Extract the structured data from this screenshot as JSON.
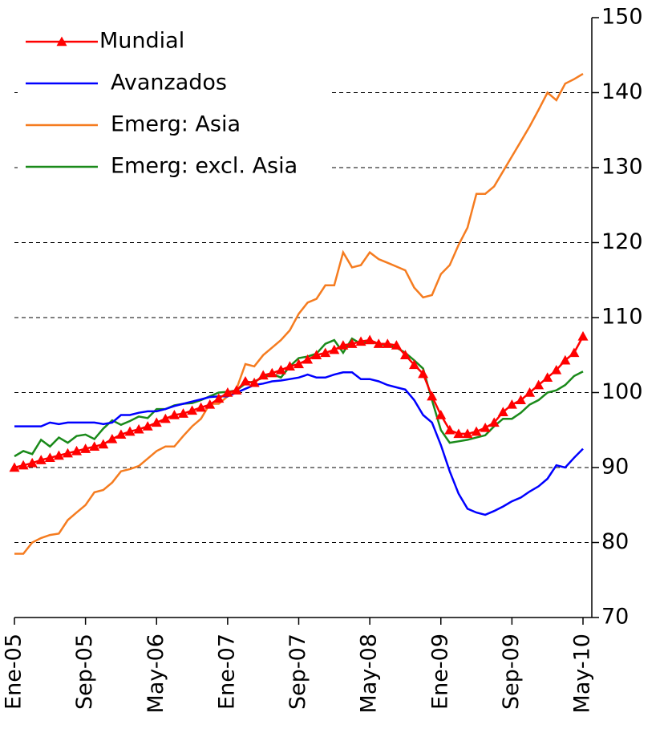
{
  "chart_data": {
    "type": "line",
    "categories": [
      "Ene-05",
      null,
      null,
      null,
      null,
      null,
      null,
      null,
      "Sep-05",
      null,
      null,
      null,
      null,
      null,
      null,
      null,
      "May-06",
      null,
      null,
      null,
      null,
      null,
      null,
      null,
      "Ene-07",
      null,
      null,
      null,
      null,
      null,
      null,
      null,
      "Sep-07",
      null,
      null,
      null,
      null,
      null,
      null,
      null,
      "May-08",
      null,
      null,
      null,
      null,
      null,
      null,
      null,
      "Ene-09",
      null,
      null,
      null,
      null,
      null,
      null,
      null,
      "Sep-09",
      null,
      null,
      null,
      null,
      null,
      null,
      null,
      "May-10"
    ],
    "series": [
      {
        "name": "Mundial",
        "color": "#ff0000",
        "marker": "triangle",
        "values": [
          90,
          90.3,
          90.6,
          91,
          91.3,
          91.6,
          91.9,
          92.2,
          92.5,
          92.8,
          93.1,
          93.8,
          94.4,
          94.8,
          95.1,
          95.5,
          96,
          96.5,
          97,
          97.2,
          97.6,
          98,
          98.4,
          99.2,
          100,
          100.3,
          101.5,
          101.3,
          102.3,
          102.6,
          103,
          103.5,
          103.8,
          104.4,
          105,
          105.3,
          105.7,
          106.3,
          106.5,
          106.8,
          107,
          106.5,
          106.5,
          106.3,
          105,
          103.7,
          102.5,
          99.5,
          97,
          95,
          94.5,
          94.5,
          94.8,
          95.3,
          96,
          97.4,
          98.4,
          99,
          100,
          101,
          102,
          103,
          104.3,
          105.3,
          107.5
        ]
      },
      {
        "name": "Avanzados",
        "color": "#0000ff",
        "values": [
          95.5,
          95.5,
          95.5,
          95.5,
          96,
          95.8,
          96,
          96,
          96,
          96,
          95.8,
          96,
          97,
          97,
          97.3,
          97.5,
          97.5,
          97.8,
          98.2,
          98.5,
          98.8,
          99.1,
          99.4,
          99.5,
          99.5,
          100,
          100.5,
          101,
          101.2,
          101.5,
          101.6,
          101.8,
          102,
          102.4,
          102,
          102,
          102.4,
          102.7,
          102.7,
          101.8,
          101.8,
          101.5,
          101,
          100.7,
          100.4,
          99,
          97,
          96,
          93,
          89.5,
          86.5,
          84.5,
          84,
          83.7,
          84.2,
          84.8,
          85.5,
          86,
          86.8,
          87.5,
          88.5,
          90.3,
          90,
          91.3,
          92.5
        ]
      },
      {
        "name": "Emerg: Asia",
        "color": "#f57c20",
        "values": [
          78.5,
          78.5,
          80,
          80.6,
          81,
          81.2,
          83,
          84,
          85,
          86.7,
          87,
          88,
          89.5,
          89.8,
          90.2,
          91.2,
          92.2,
          92.8,
          92.8,
          94.2,
          95.5,
          96.5,
          98.5,
          98.5,
          99.5,
          100.5,
          103.8,
          103.5,
          105,
          106,
          107,
          108.3,
          110.5,
          112,
          112.5,
          114.3,
          114.3,
          118.7,
          116.7,
          117,
          118.7,
          117.8,
          117.3,
          116.8,
          116.3,
          114,
          112.7,
          113,
          115.8,
          117,
          119.7,
          122,
          126.5,
          126.5,
          127.5,
          129.5,
          131.5,
          133.5,
          135.5,
          137.7,
          140,
          139,
          141.2,
          141.8,
          142.5
        ]
      },
      {
        "name": "Emerg: excl. Asia",
        "color": "#1a8a1a",
        "values": [
          91.5,
          92.2,
          91.8,
          93.7,
          92.8,
          94,
          93.3,
          94.2,
          94.4,
          93.8,
          95.2,
          96.3,
          95.7,
          96.2,
          96.8,
          96.6,
          97.8,
          97.8,
          98.3,
          98.5,
          98.6,
          99,
          99.5,
          100,
          100.1,
          100.3,
          101.2,
          101.5,
          102,
          102.5,
          102,
          103.5,
          104.6,
          104.8,
          105.2,
          106.5,
          107,
          105.3,
          107.2,
          106.5,
          106.8,
          106.5,
          106.3,
          106,
          105.3,
          104.3,
          103.2,
          99,
          95,
          93.3,
          93.5,
          93.7,
          94,
          94.3,
          95.5,
          96.5,
          96.5,
          97.3,
          98.4,
          99,
          100,
          100.3,
          101,
          102.2,
          102.8
        ]
      }
    ],
    "ylim": [
      70,
      150
    ],
    "yticks": [
      70,
      80,
      90,
      100,
      110,
      120,
      130,
      140,
      150
    ],
    "grid": true,
    "legend": "top-left"
  }
}
